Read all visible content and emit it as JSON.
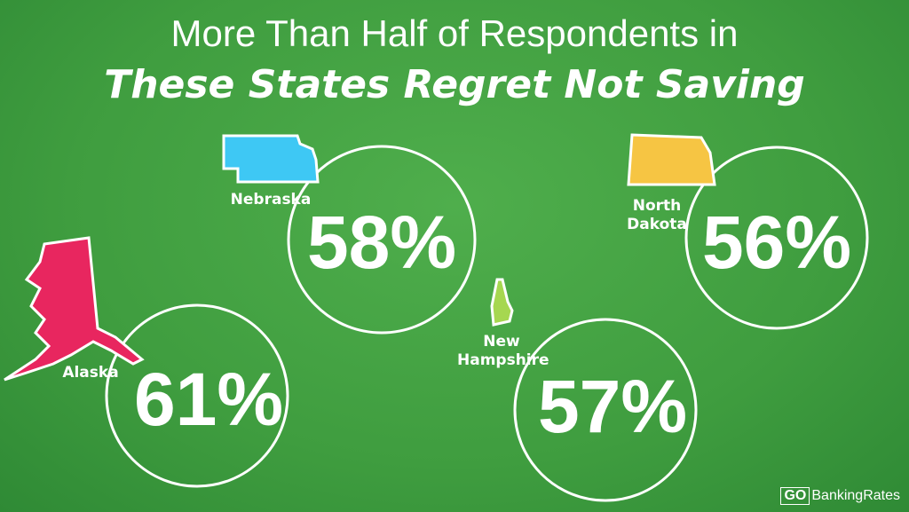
{
  "title": {
    "line1": "More Than Half of Respondents in",
    "line2": "These States Regret Not Saving"
  },
  "states": [
    {
      "name": "Nebraska",
      "value": "58%"
    },
    {
      "name": "North Dakota",
      "value": "56%"
    },
    {
      "name": "Alaska",
      "value": "61%"
    },
    {
      "name": "New Hampshire",
      "value": "57%"
    }
  ],
  "logo": {
    "go": "GO",
    "name": "BankingRates"
  }
}
